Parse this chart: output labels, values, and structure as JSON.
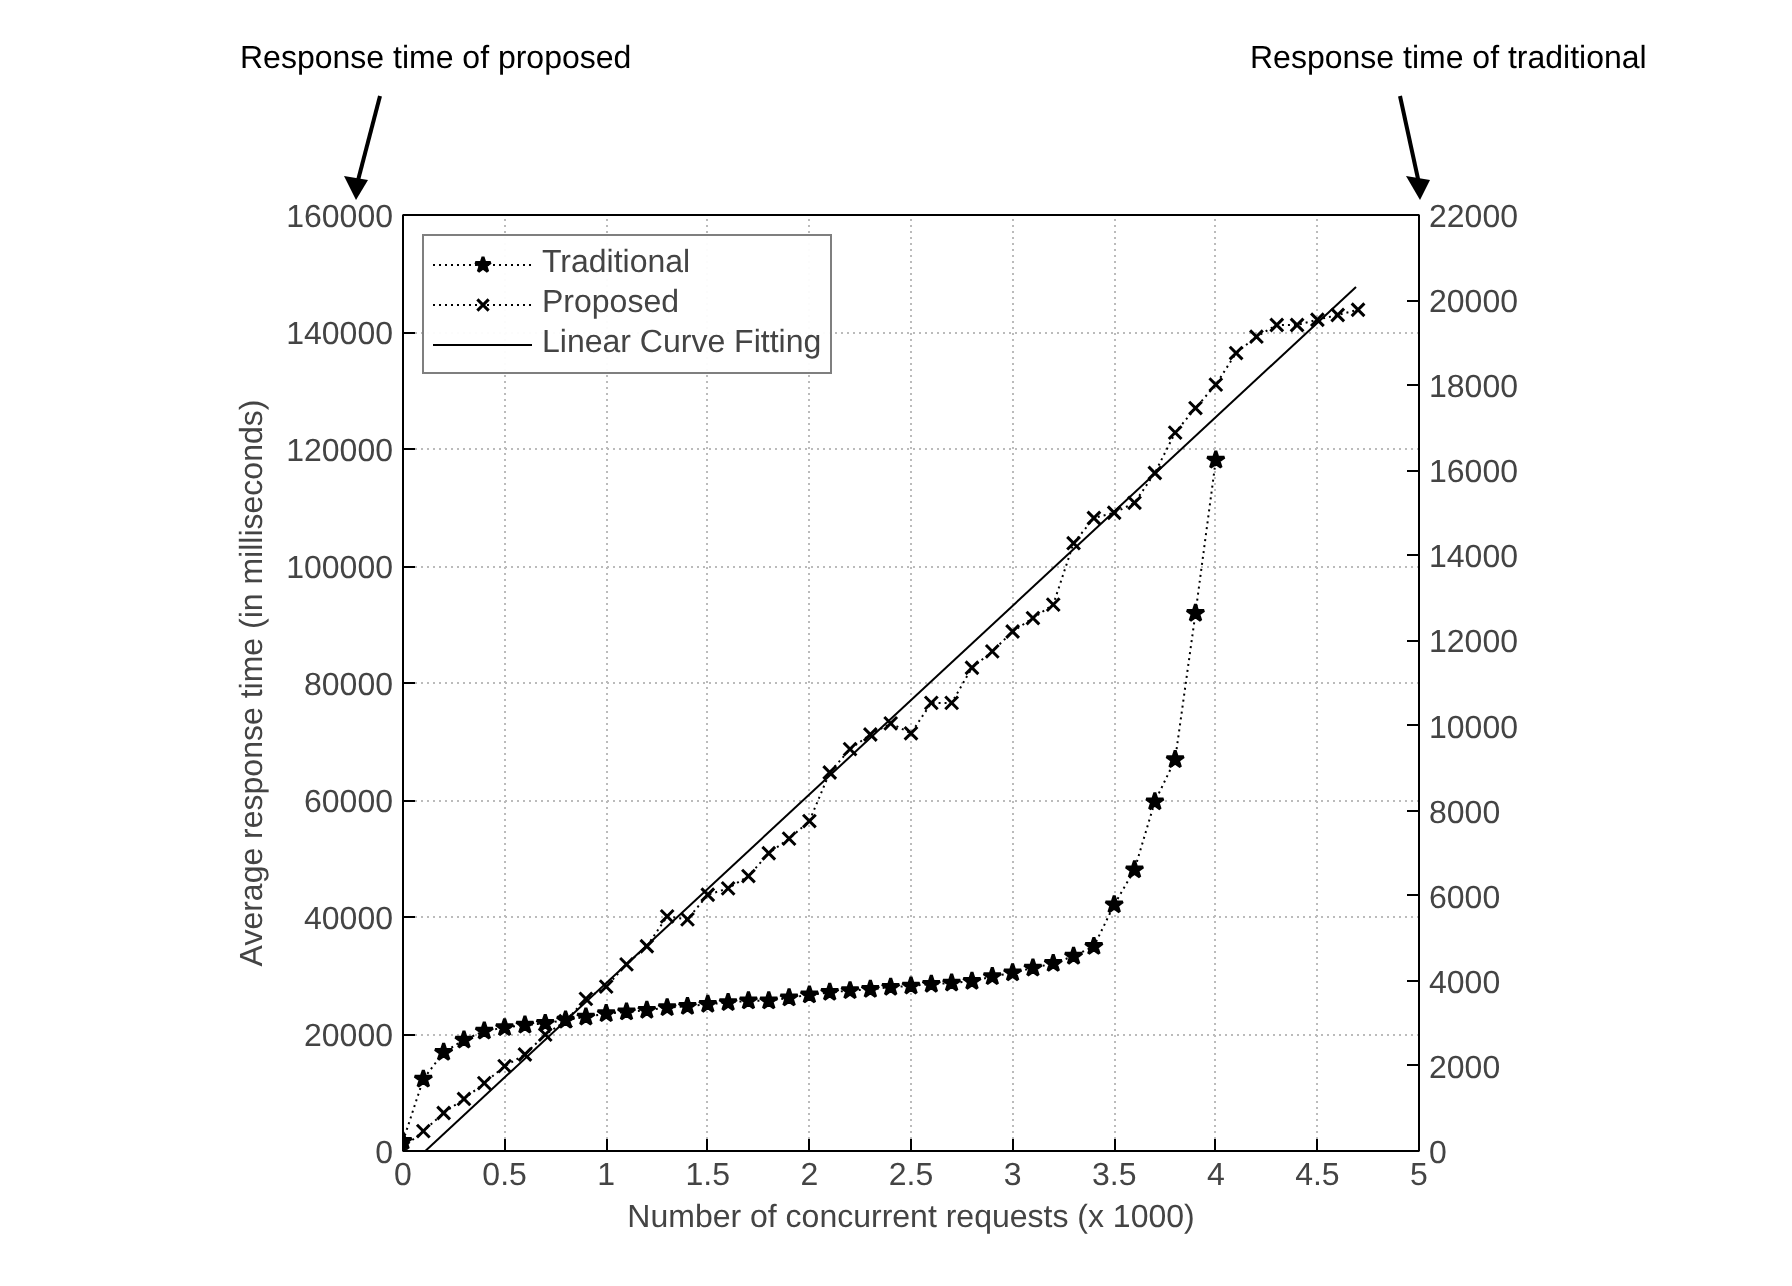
{
  "chart_data": {
    "type": "line",
    "xlabel": "Number of concurrent requests (x 1000)",
    "ylabel": "Average response time (in milliseconds)",
    "annotations": [
      "Response time of proposed",
      "Response time of traditional"
    ],
    "xlim": [
      0,
      5
    ],
    "xticks": [
      0,
      0.5,
      1,
      1.5,
      2,
      2.5,
      3,
      3.5,
      4,
      4.5,
      5
    ],
    "ylim": [
      0,
      160000
    ],
    "yticks": [
      0,
      20000,
      40000,
      60000,
      80000,
      100000,
      120000,
      140000,
      160000
    ],
    "y2lim": [
      0,
      22000
    ],
    "y2ticks": [
      0,
      2000,
      4000,
      6000,
      8000,
      10000,
      12000,
      14000,
      16000,
      18000,
      20000,
      22000
    ],
    "grid": true,
    "legend": "top left",
    "series": [
      {
        "name": "Traditional",
        "color": "#000000",
        "axis": "y2",
        "marker": "star",
        "line_style": "dotted",
        "x": [
          0,
          0.1,
          0.2,
          0.3,
          0.4,
          0.5,
          0.6,
          0.7,
          0.8,
          0.9,
          1,
          1.1,
          1.2,
          1.3,
          1.4,
          1.5,
          1.6,
          1.7,
          1.8,
          1.9,
          2,
          2.1,
          2.2,
          2.3,
          2.4,
          2.5,
          2.6,
          2.7,
          2.8,
          2.9,
          3,
          3.1,
          3.2,
          3.3,
          3.4,
          3.5,
          3.6,
          3.7,
          3.8,
          3.9,
          4
        ],
        "values": [
          230,
          1690,
          2320,
          2610,
          2820,
          2900,
          2960,
          3000,
          3080,
          3150,
          3230,
          3270,
          3310,
          3370,
          3400,
          3450,
          3490,
          3530,
          3530,
          3600,
          3670,
          3730,
          3770,
          3800,
          3850,
          3880,
          3920,
          3950,
          3990,
          4100,
          4190,
          4300,
          4410,
          4580,
          4810,
          5790,
          6610,
          8210,
          9200,
          12640,
          16240
        ]
      },
      {
        "name": "Proposed",
        "color": "#000000",
        "marker": "cross",
        "line_style": "dotted",
        "x": [
          0,
          0.1,
          0.2,
          0.3,
          0.4,
          0.5,
          0.6,
          0.7,
          0.8,
          0.9,
          1,
          1.1,
          1.2,
          1.3,
          1.4,
          1.5,
          1.6,
          1.7,
          1.8,
          1.9,
          2,
          2.1,
          2.2,
          2.3,
          2.4,
          2.5,
          2.6,
          2.7,
          2.8,
          2.9,
          3,
          3.1,
          3.2,
          3.3,
          3.4,
          3.5,
          3.6,
          3.7,
          3.8,
          3.9,
          4,
          4.1,
          4.2,
          4.3,
          4.4,
          4.5,
          4.6,
          4.7
        ],
        "values": [
          600,
          3400,
          6500,
          8900,
          11600,
          14500,
          16500,
          19900,
          22200,
          26000,
          28100,
          31900,
          35000,
          40100,
          39600,
          43800,
          44900,
          47000,
          50900,
          53400,
          56400,
          64700,
          68700,
          71200,
          73100,
          71400,
          76600,
          76600,
          82600,
          85400,
          88800,
          91100,
          93400,
          103900,
          108200,
          109100,
          110800,
          115900,
          122800,
          127000,
          131000,
          136400,
          139200,
          141200,
          141200,
          142100,
          142900,
          143800
        ]
      },
      {
        "name": "Linear Curve Fitting",
        "color": "#000000",
        "marker": "none",
        "line_style": "solid",
        "x": [
          0.11,
          4.69
        ],
        "values": [
          0,
          147700
        ]
      }
    ]
  }
}
